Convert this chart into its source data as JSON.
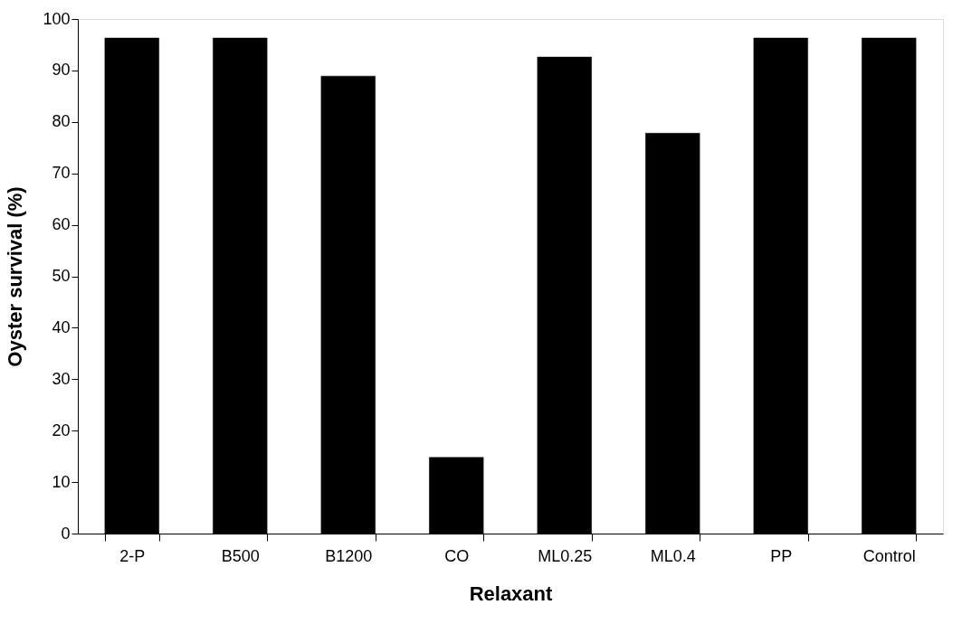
{
  "chart_data": {
    "type": "bar",
    "xlabel": "Relaxant",
    "ylabel": "Oyster survival (%)",
    "categories": [
      "2-P",
      "B500",
      "B1200",
      "CO",
      "ML0.25",
      "ML0.4",
      "PP",
      "Control"
    ],
    "values": [
      96.3,
      96.3,
      88.9,
      14.8,
      92.6,
      77.8,
      96.3,
      96.3
    ],
    "color": "#000000",
    "ylim": [
      0,
      100
    ],
    "yticks": [
      0,
      10,
      20,
      30,
      40,
      50,
      60,
      70,
      80,
      90,
      100
    ],
    "grid": false
  }
}
